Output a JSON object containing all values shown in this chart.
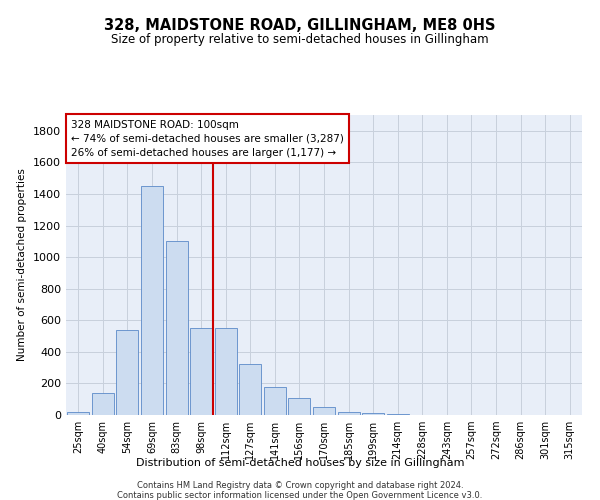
{
  "title": "328, MAIDSTONE ROAD, GILLINGHAM, ME8 0HS",
  "subtitle": "Size of property relative to semi-detached houses in Gillingham",
  "xlabel": "Distribution of semi-detached houses by size in Gillingham",
  "ylabel": "Number of semi-detached properties",
  "categories": [
    "25sqm",
    "40sqm",
    "54sqm",
    "69sqm",
    "83sqm",
    "98sqm",
    "112sqm",
    "127sqm",
    "141sqm",
    "156sqm",
    "170sqm",
    "185sqm",
    "199sqm",
    "214sqm",
    "228sqm",
    "243sqm",
    "257sqm",
    "272sqm",
    "286sqm",
    "301sqm",
    "315sqm"
  ],
  "values": [
    20,
    140,
    540,
    1450,
    1100,
    550,
    550,
    325,
    175,
    105,
    50,
    20,
    10,
    5,
    3,
    2,
    2,
    2,
    2,
    2,
    2
  ],
  "bar_color": "#ccdcf0",
  "bar_edge_color": "#5b8ac8",
  "vline_x": 5.5,
  "vline_color": "#cc0000",
  "annotation_line1": "328 MAIDSTONE ROAD: 100sqm",
  "annotation_line2": "← 74% of semi-detached houses are smaller (3,287)",
  "annotation_line3": "26% of semi-detached houses are larger (1,177) →",
  "annotation_box_color": "#cc0000",
  "ylim": [
    0,
    1900
  ],
  "yticks": [
    0,
    200,
    400,
    600,
    800,
    1000,
    1200,
    1400,
    1600,
    1800
  ],
  "footer1": "Contains HM Land Registry data © Crown copyright and database right 2024.",
  "footer2": "Contains public sector information licensed under the Open Government Licence v3.0.",
  "grid_color": "#c8d0dc",
  "bg_color": "#e8eef8",
  "title_fontsize": 10.5,
  "subtitle_fontsize": 8.5
}
